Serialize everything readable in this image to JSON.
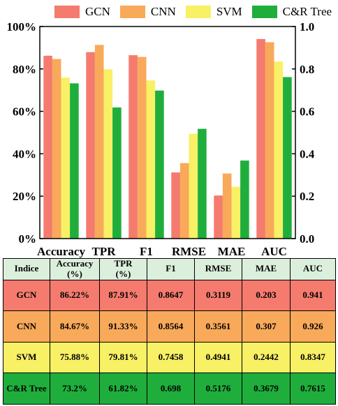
{
  "chart_data": {
    "type": "bar",
    "categories": [
      "Accuracy",
      "TPR",
      "F1",
      "RMSE",
      "MAE",
      "AUC"
    ],
    "series": [
      {
        "name": "GCN",
        "color": "#f47b6e",
        "values": [
          0.8622,
          0.8791,
          0.8647,
          0.3119,
          0.203,
          0.941
        ]
      },
      {
        "name": "CNN",
        "color": "#f9a95a",
        "values": [
          0.8467,
          0.9133,
          0.8564,
          0.3561,
          0.307,
          0.926
        ]
      },
      {
        "name": "SVM",
        "color": "#f8f065",
        "values": [
          0.7588,
          0.7981,
          0.7458,
          0.4941,
          0.2442,
          0.8347
        ]
      },
      {
        "name": "C&R Tree",
        "color": "#1fae3c",
        "values": [
          0.732,
          0.6182,
          0.698,
          0.5176,
          0.3679,
          0.7615
        ]
      }
    ],
    "ylim": [
      0,
      1
    ],
    "left_ticks": [
      "0%",
      "20%",
      "40%",
      "60%",
      "80%",
      "100%"
    ],
    "right_ticks": [
      "0.0",
      "0.2",
      "0.4",
      "0.6",
      "0.8",
      "1.0"
    ],
    "legend_position": "top",
    "grid": false
  },
  "table": {
    "header": [
      {
        "line1": "Indice",
        "line2": ""
      },
      {
        "line1": "Accuracy",
        "line2": "(%)"
      },
      {
        "line1": "TPR",
        "line2": "(%)"
      },
      {
        "line1": "F1",
        "line2": ""
      },
      {
        "line1": "RMSE",
        "line2": ""
      },
      {
        "line1": "MAE",
        "line2": ""
      },
      {
        "line1": "AUC",
        "line2": ""
      }
    ],
    "header_bg": "#dcefdc",
    "rows": [
      {
        "bg": "#f47b6e",
        "cells": [
          "GCN",
          "86.22%",
          "87.91%",
          "0.8647",
          "0.3119",
          "0.203",
          "0.941"
        ]
      },
      {
        "bg": "#f9a95a",
        "cells": [
          "CNN",
          "84.67%",
          "91.33%",
          "0.8564",
          "0.3561",
          "0.307",
          "0.926"
        ]
      },
      {
        "bg": "#f8f065",
        "cells": [
          "SVM",
          "75.88%",
          "79.81%",
          "0.7458",
          "0.4941",
          "0.2442",
          "0.8347"
        ]
      },
      {
        "bg": "#1fae3c",
        "cells": [
          "C&R Tree",
          "73.2%",
          "61.82%",
          "0.698",
          "0.5176",
          "0.3679",
          "0.7615"
        ]
      }
    ]
  }
}
